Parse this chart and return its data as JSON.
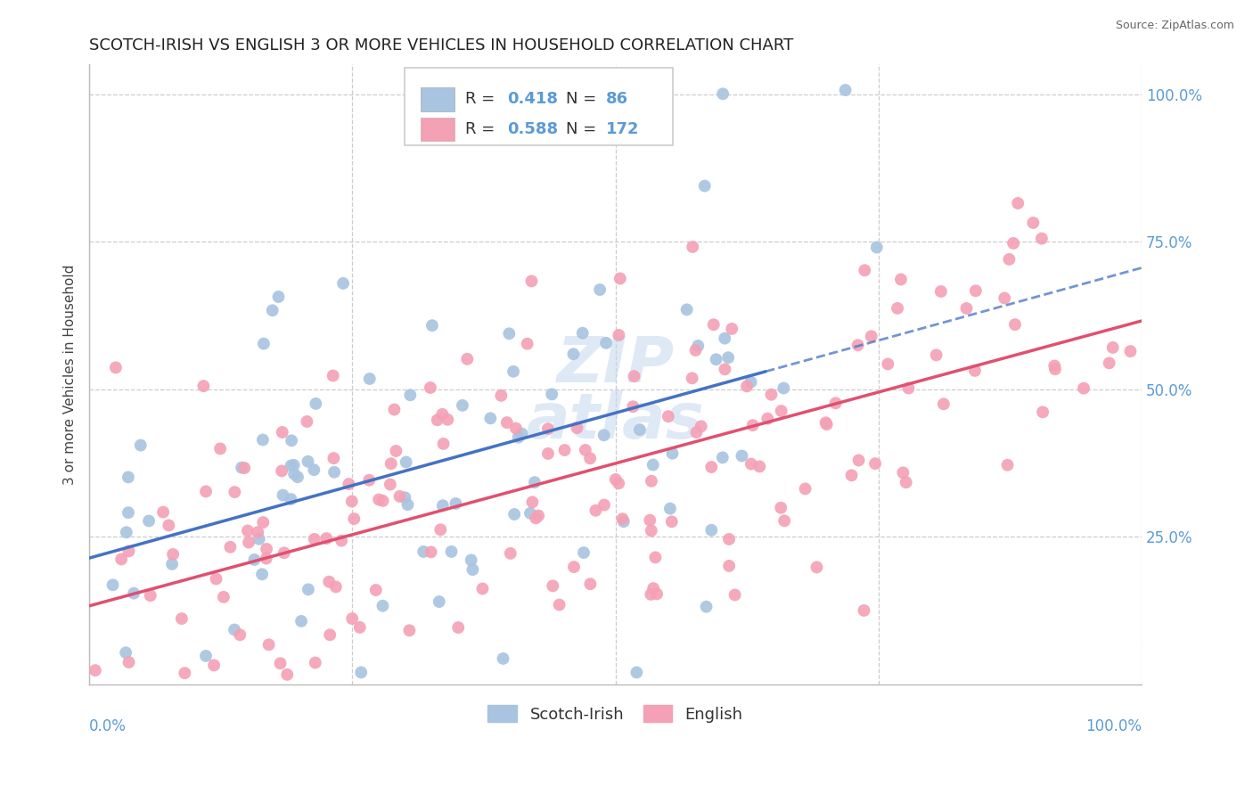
{
  "title": "SCOTCH-IRISH VS ENGLISH 3 OR MORE VEHICLES IN HOUSEHOLD CORRELATION CHART",
  "source": "Source: ZipAtlas.com",
  "ylabel": "3 or more Vehicles in Household",
  "scotch_irish_color": "#a8c4e0",
  "english_color": "#f4a0b5",
  "scotch_irish_R": 0.418,
  "scotch_irish_N": 86,
  "english_R": 0.588,
  "english_N": 172,
  "background_color": "#ffffff",
  "grid_color": "#cccccc",
  "watermark": "ZIPAtlas",
  "axis_label_color": "#5b9bd5",
  "regression_blue_color": "#4472c4",
  "regression_pink_color": "#e05070",
  "regression_dashed_color": "#8888cc",
  "ytick_positions": [
    0.25,
    0.5,
    0.75,
    1.0
  ],
  "si_intercept": 0.285,
  "si_slope": 0.38,
  "en_intercept": 0.17,
  "en_slope": 0.42
}
